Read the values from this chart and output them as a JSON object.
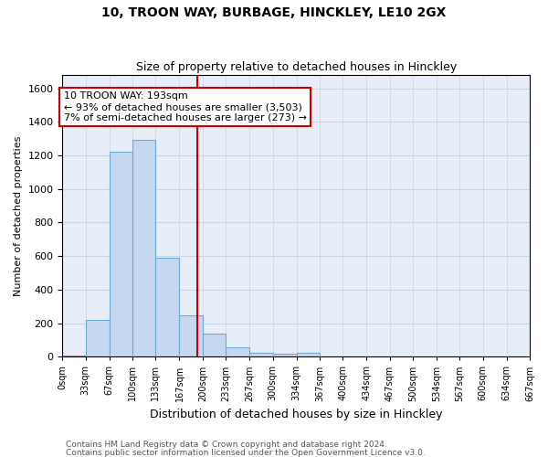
{
  "title": "10, TROON WAY, BURBAGE, HINCKLEY, LE10 2GX",
  "subtitle": "Size of property relative to detached houses in Hinckley",
  "xlabel": "Distribution of detached houses by size in Hinckley",
  "ylabel": "Number of detached properties",
  "footnote1": "Contains HM Land Registry data © Crown copyright and database right 2024.",
  "footnote2": "Contains public sector information licensed under the Open Government Licence v3.0.",
  "annotation_line1": "10 TROON WAY: 193sqm",
  "annotation_line2": "← 93% of detached houses are smaller (3,503)",
  "annotation_line3": "7% of semi-detached houses are larger (273) →",
  "red_line_x": 193,
  "bar_color": "#c5d8f0",
  "bar_edge_color": "#6aaad4",
  "red_line_color": "#cc0000",
  "annotation_box_color": "#ffffff",
  "annotation_box_edge": "#cc0000",
  "grid_color": "#c8d4e8",
  "background_color": "#e8eef8",
  "bin_edges": [
    0,
    33,
    67,
    100,
    133,
    167,
    200,
    233,
    267,
    300,
    334,
    367,
    400,
    434,
    467,
    500,
    534,
    567,
    600,
    634,
    667
  ],
  "bin_labels": [
    "0sqm",
    "33sqm",
    "67sqm",
    "100sqm",
    "133sqm",
    "167sqm",
    "200sqm",
    "233sqm",
    "267sqm",
    "300sqm",
    "334sqm",
    "367sqm",
    "400sqm",
    "434sqm",
    "467sqm",
    "500sqm",
    "534sqm",
    "567sqm",
    "600sqm",
    "634sqm",
    "667sqm"
  ],
  "bar_heights": [
    5,
    220,
    1220,
    1295,
    590,
    245,
    140,
    55,
    25,
    20,
    25,
    0,
    0,
    0,
    0,
    0,
    0,
    0,
    0,
    0
  ],
  "ylim": [
    0,
    1680
  ],
  "yticks": [
    0,
    200,
    400,
    600,
    800,
    1000,
    1200,
    1400,
    1600
  ]
}
